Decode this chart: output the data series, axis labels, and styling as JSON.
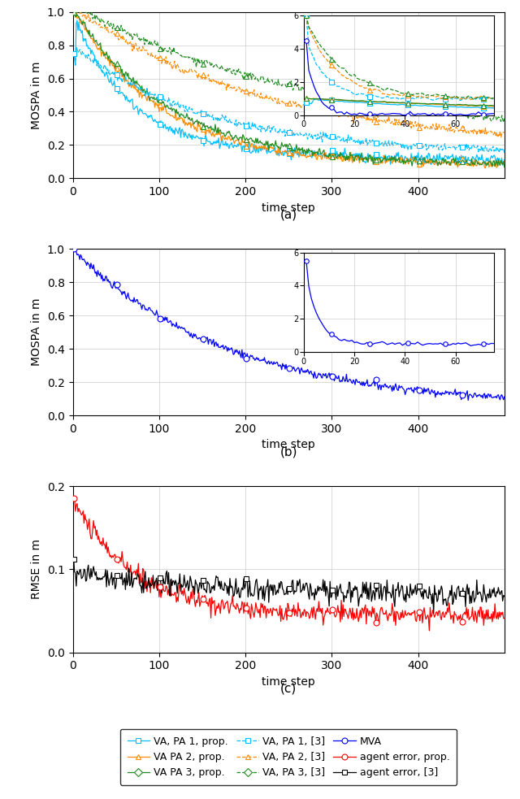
{
  "colors": {
    "cyan": "#00BFFF",
    "orange": "#FF8C00",
    "green": "#228B22",
    "blue": "#0000FF",
    "red": "#FF0000",
    "black": "#000000"
  },
  "panel_a": {
    "ylim": [
      0,
      1.0
    ],
    "ylabel": "MOSPA in m",
    "xlabel": "time step",
    "label": "(a)"
  },
  "panel_b": {
    "ylim": [
      0,
      1.0
    ],
    "ylabel": "MOSPA in m",
    "xlabel": "time step",
    "label": "(b)"
  },
  "panel_c": {
    "ylim": [
      0,
      0.2
    ],
    "ylabel": "RMSE in m",
    "xlabel": "time step",
    "label": "(c)"
  }
}
